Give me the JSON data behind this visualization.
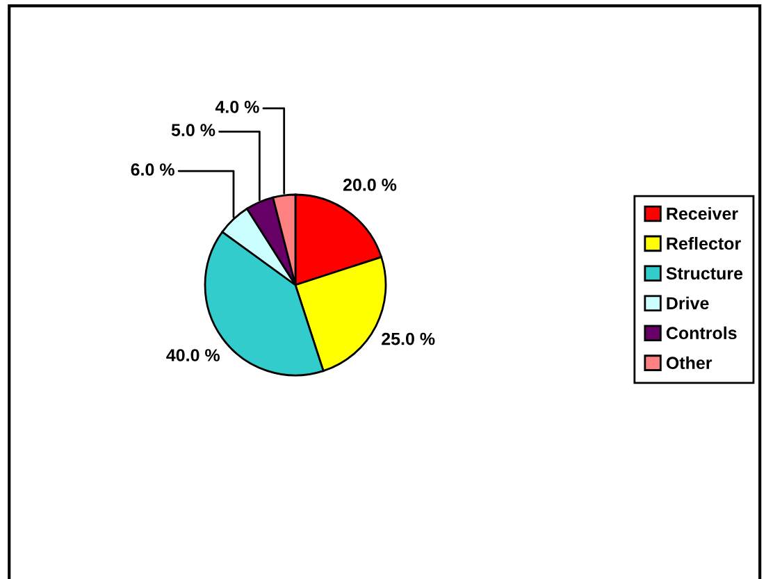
{
  "chart_data": {
    "type": "pie",
    "categories": [
      "Receiver",
      "Reflector",
      "Structure",
      "Drive",
      "Controls",
      "Other"
    ],
    "values": [
      20,
      25,
      40,
      6,
      5,
      4
    ],
    "colors": [
      "#ff0000",
      "#ffff00",
      "#33cccc",
      "#ccffff",
      "#660066",
      "#ff8080"
    ],
    "value_labels": [
      "20.0 %",
      "25.0 %",
      "40.0 %",
      "6.0 %",
      "5.0 %",
      "4.0 %"
    ],
    "legend": "right"
  }
}
